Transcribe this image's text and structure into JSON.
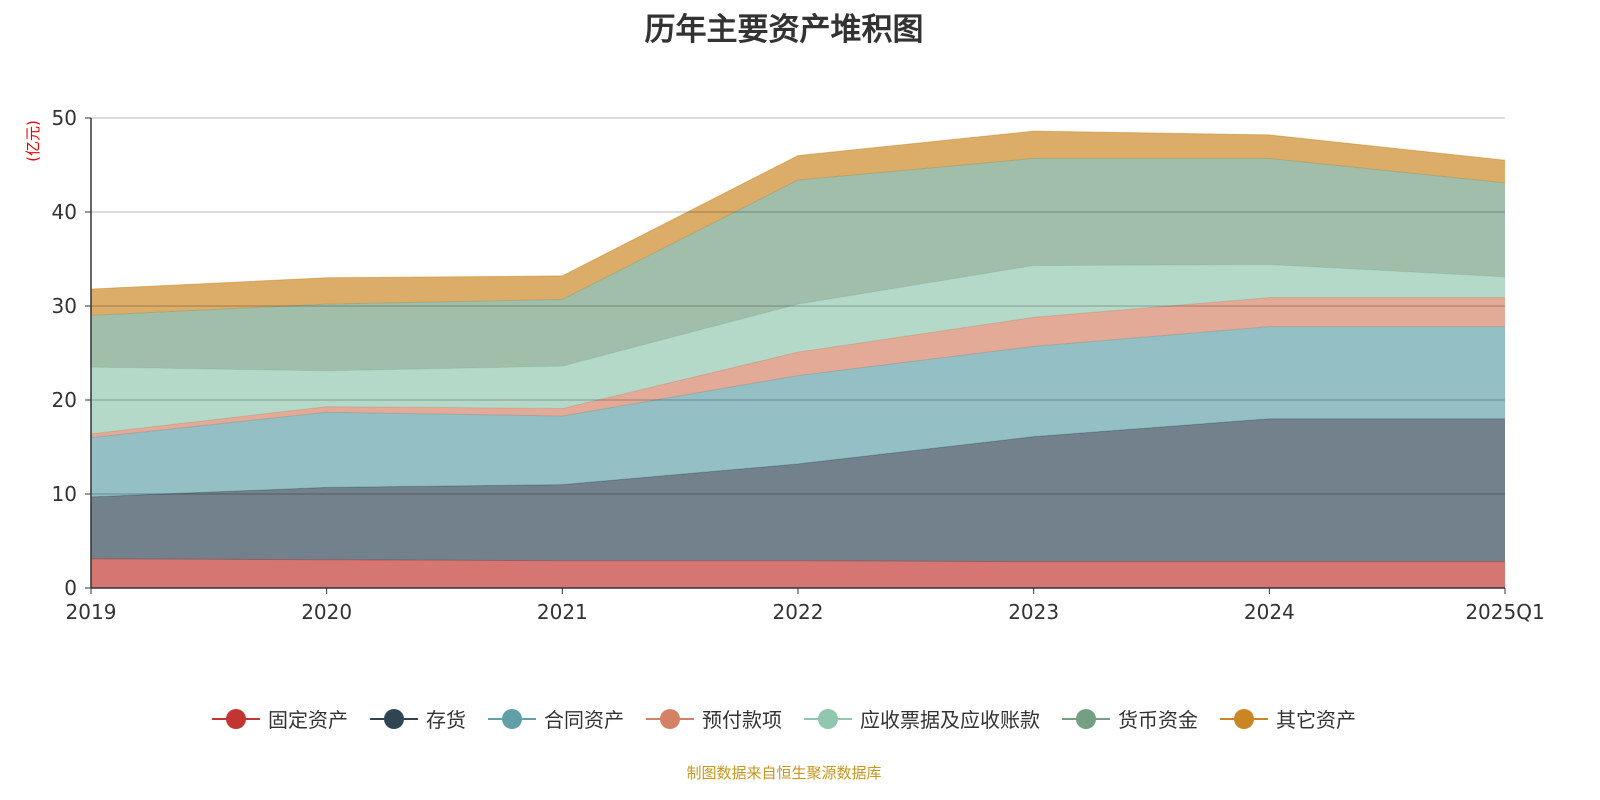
{
  "chart_data": {
    "type": "area",
    "stacked": true,
    "title": "历年主要资产堆积图",
    "ylabel": "(亿元)",
    "xlabel": "",
    "ylim": [
      0,
      50
    ],
    "yticks": [
      0,
      10,
      20,
      30,
      40,
      50
    ],
    "grid": true,
    "legend_position": "bottom",
    "categories": [
      "2019",
      "2020",
      "2021",
      "2022",
      "2023",
      "2024",
      "2025Q1"
    ],
    "series": [
      {
        "name": "固定资产",
        "color": "#c23531",
        "values": [
          3.1,
          3.0,
          2.9,
          2.9,
          2.8,
          2.8,
          2.8
        ]
      },
      {
        "name": "存货",
        "color": "#2f4554",
        "values": [
          6.6,
          7.7,
          8.1,
          10.3,
          13.3,
          15.2,
          15.2
        ]
      },
      {
        "name": "合同资产",
        "color": "#61a0a8",
        "values": [
          6.3,
          8.0,
          7.3,
          9.4,
          9.6,
          9.8,
          9.8
        ]
      },
      {
        "name": "预付款项",
        "color": "#d48265",
        "values": [
          0.4,
          0.6,
          0.8,
          2.5,
          3.1,
          3.1,
          3.1
        ]
      },
      {
        "name": "应收票据及应收账款",
        "color": "#91c7ae",
        "values": [
          7.1,
          3.8,
          4.5,
          5.1,
          5.5,
          3.5,
          2.2
        ]
      },
      {
        "name": "货币资金",
        "color": "#749f83",
        "values": [
          5.5,
          7.1,
          7.1,
          13.2,
          11.4,
          11.3,
          10.0
        ]
      },
      {
        "name": "其它资产",
        "color": "#ca8622",
        "values": [
          2.8,
          2.8,
          2.5,
          2.6,
          2.9,
          2.5,
          2.4
        ]
      }
    ]
  },
  "source": "制图数据来自恒生聚源数据库"
}
